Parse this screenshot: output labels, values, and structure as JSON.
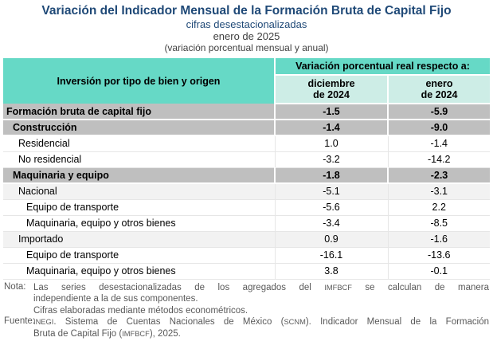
{
  "title": "Variación del Indicador Mensual de la Formación Bruta de Capital Fijo",
  "subtitle": "cifras desestacionalizadas",
  "period": "enero de 2025",
  "measure_note": "(variación porcentual mensual y anual)",
  "colors": {
    "title_blue": "#1F4977",
    "header_teal": "#66D9C6",
    "subheader_teal": "#CDEDE6",
    "section_row_gray": "#BFBFBF",
    "subsection_row_gray": "#F2F2F2"
  },
  "table": {
    "row_header": "Inversión por tipo de bien y origen",
    "col_group_header": "Variación porcentual real respecto a:",
    "columns": [
      {
        "line1": "diciembre",
        "line2": "de 2024"
      },
      {
        "line1": "enero",
        "line2": "de 2024"
      }
    ],
    "rows": [
      {
        "label": "Formación bruta de capital fijo",
        "dec": "-1.5",
        "ene": "-5.9"
      },
      {
        "label": "Construcción",
        "dec": "-1.4",
        "ene": "-9.0"
      },
      {
        "label": "Residencial",
        "dec": "1.0",
        "ene": "-1.4"
      },
      {
        "label": "No residencial",
        "dec": "-3.2",
        "ene": "-14.2"
      },
      {
        "label": "Maquinaria y equipo",
        "dec": "-1.8",
        "ene": "-2.3"
      },
      {
        "label": "Nacional",
        "dec": "-5.1",
        "ene": "-3.1"
      },
      {
        "label": "Equipo de transporte",
        "dec": "-5.6",
        "ene": "2.2"
      },
      {
        "label": "Maquinaria, equipo y otros bienes",
        "dec": "-3.4",
        "ene": "-8.5"
      },
      {
        "label": "Importado",
        "dec": "0.9",
        "ene": "-1.6"
      },
      {
        "label": "Equipo de transporte",
        "dec": "-16.1",
        "ene": "-13.6"
      },
      {
        "label": "Maquinaria, equipo y otros bienes",
        "dec": "3.8",
        "ene": "-0.1"
      }
    ]
  },
  "notes": {
    "nota_label": "Nota:",
    "nota_line1_parts": [
      "Las series desestacionalizadas de los agregados del ",
      "IMFBCF",
      " se calculan de manera"
    ],
    "nota_line2": "independiente a la de sus componentes.",
    "nota_line3": "Cifras elaboradas mediante métodos econométricos.",
    "fuente_label": "Fuente:",
    "fuente_line1_parts": [
      "INEGI",
      ". Sistema de Cuentas Nacionales de México (",
      "SCNM",
      "). Indicador Mensual de la Formación"
    ],
    "fuente_line2_parts": [
      "Bruta de Capital Fijo (",
      "IMFBCF",
      "), 2025."
    ]
  }
}
